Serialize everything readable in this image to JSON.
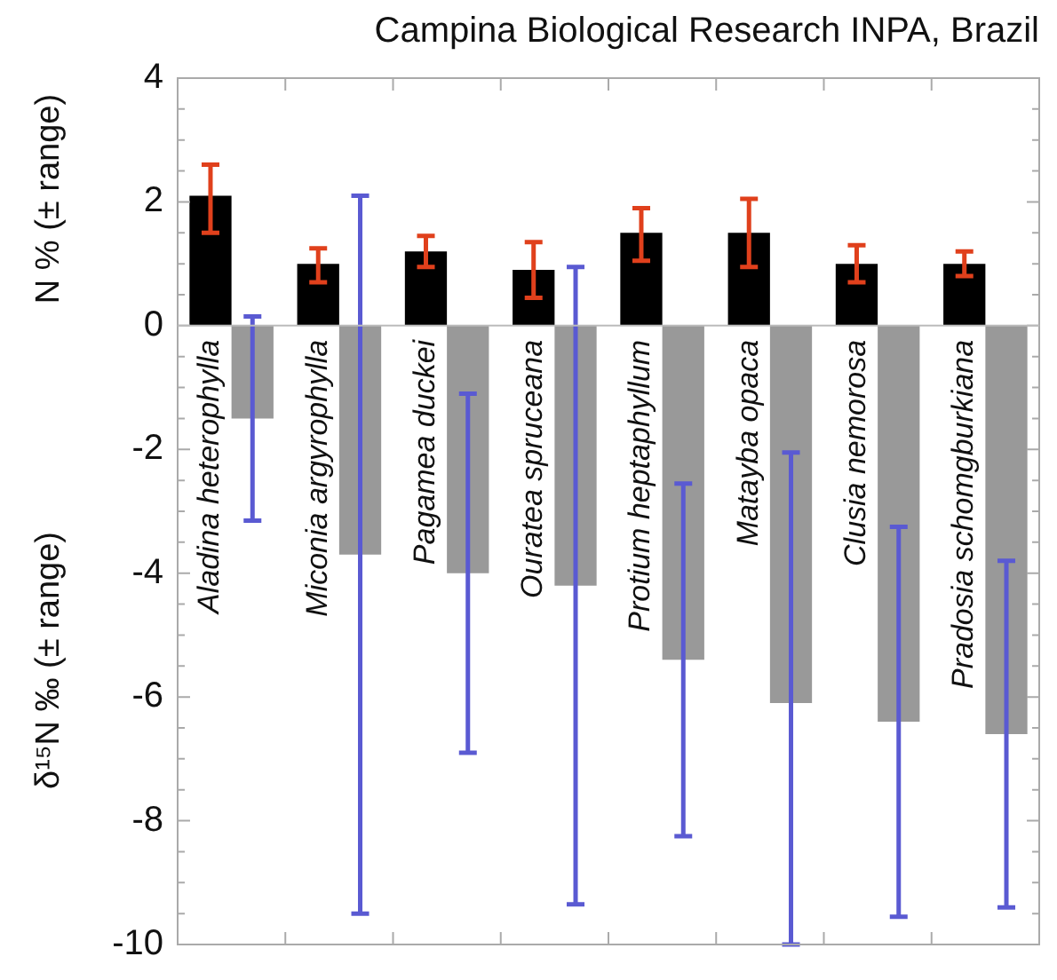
{
  "chart_data": {
    "type": "bar",
    "title": "Campina Biological Research INPA, Brazil",
    "ylabel": "N % (± range)",
    "y2label": "δ¹⁵N ‰ (± range)",
    "categories": [
      "Aladina heterophylla",
      "Miconia argyrophylla",
      "Pagamea duckei",
      "Ouratea spruceana",
      "Protium heptaphyllum",
      "Matayba opaca",
      "Clusia nemorosa",
      "Pradosia schomgburkiana"
    ],
    "series": [
      {
        "color": "#000000",
        "values": [
          2.1,
          1.0,
          1.2,
          0.9,
          1.5,
          1.5,
          1.0,
          1.0
        ],
        "errors": [
          [
            1.5,
            2.6
          ],
          [
            0.7,
            1.25
          ],
          [
            0.95,
            1.45
          ],
          [
            0.45,
            1.35
          ],
          [
            1.05,
            1.9
          ],
          [
            0.95,
            2.05
          ],
          [
            0.7,
            1.3
          ],
          [
            0.8,
            1.2
          ]
        ]
      },
      {
        "color": "#999999",
        "values": [
          -1.5,
          -3.7,
          -4.0,
          -4.2,
          -5.4,
          -6.1,
          -6.4,
          -6.6
        ],
        "errors": [
          [
            -3.15,
            0.15
          ],
          [
            -9.5,
            2.1
          ],
          [
            -6.9,
            -1.1
          ],
          [
            -9.35,
            0.95
          ],
          [
            -8.25,
            -2.55
          ],
          [
            -10,
            -2.05
          ],
          [
            -9.55,
            -3.25
          ],
          [
            -9.4,
            -3.8
          ]
        ]
      }
    ],
    "ylim": [
      -10,
      4
    ],
    "yticks": [
      -10,
      {
        "value": -9.5,
        "label": null
      },
      {
        "value": -9,
        "label": null
      },
      {
        "value": -8.5,
        "label": null
      },
      -8,
      {
        "value": -7.5,
        "label": null
      },
      {
        "value": -7,
        "label": null
      },
      {
        "value": -6.5,
        "label": null
      },
      -6,
      {
        "value": -5.5,
        "label": null
      },
      {
        "value": -5,
        "label": null
      },
      {
        "value": -4.5,
        "label": null
      },
      -4,
      {
        "value": -3.5,
        "label": null
      },
      {
        "value": -3,
        "label": null
      },
      {
        "value": -2.5,
        "label": null
      },
      -2,
      {
        "value": -1.5,
        "label": null
      },
      {
        "value": -1,
        "label": null
      },
      {
        "value": -0.5,
        "label": null
      },
      0,
      {
        "value": 0.5,
        "label": null
      },
      {
        "value": 1,
        "label": null
      },
      {
        "value": 1.5,
        "label": null
      },
      2,
      {
        "value": 2.5,
        "label": null
      },
      {
        "value": 3,
        "label": null
      },
      {
        "value": 3.5,
        "label": null
      },
      4
    ],
    "tick_labels": "y",
    "grid": false,
    "legend": false
  }
}
